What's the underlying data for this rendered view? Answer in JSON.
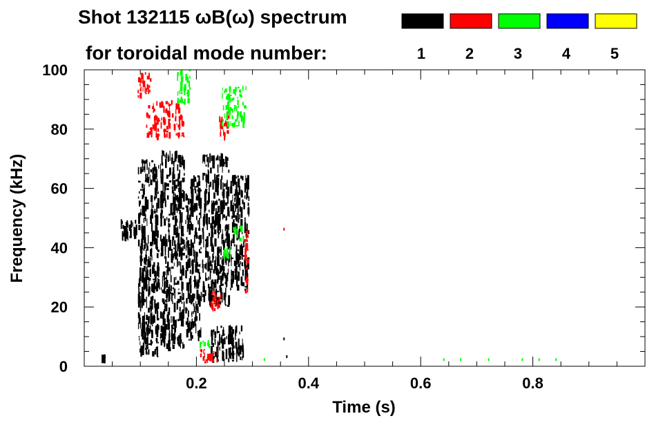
{
  "chart_data": {
    "type": "heatmap",
    "title_line1": "Shot 132115 ωB(ω) spectrum",
    "title_line2": "for toroidal mode number:",
    "xlabel": "Time (s)",
    "ylabel": "Frequency (kHz)",
    "xlim": [
      0.0,
      1.0
    ],
    "ylim": [
      0,
      100
    ],
    "x_ticks": [
      {
        "value": 0.2,
        "label": "0.2"
      },
      {
        "value": 0.4,
        "label": "0.4"
      },
      {
        "value": 0.6,
        "label": "0.6"
      },
      {
        "value": 0.8,
        "label": "0.8"
      }
    ],
    "y_ticks": [
      {
        "value": 0,
        "label": "0"
      },
      {
        "value": 20,
        "label": "20"
      },
      {
        "value": 40,
        "label": "40"
      },
      {
        "value": 60,
        "label": "60"
      },
      {
        "value": 80,
        "label": "80"
      },
      {
        "value": 100,
        "label": "100"
      }
    ],
    "legend": [
      {
        "n": "1",
        "label": "1",
        "color": "#000000"
      },
      {
        "n": "2",
        "label": "2",
        "color": "#ff0000"
      },
      {
        "n": "3",
        "label": "3",
        "color": "#00ff00"
      },
      {
        "n": "4",
        "label": "4",
        "color": "#0000ff"
      },
      {
        "n": "5",
        "label": "5",
        "color": "#ffff00"
      }
    ],
    "regions": [
      {
        "mode": "1",
        "t0": 0.065,
        "t1": 0.095,
        "f0": 42,
        "f1": 50
      },
      {
        "mode": "1",
        "t0": 0.095,
        "t1": 0.135,
        "f0": 3,
        "f1": 70
      },
      {
        "mode": "1",
        "t0": 0.135,
        "t1": 0.18,
        "f0": 5,
        "f1": 73
      },
      {
        "mode": "1",
        "t0": 0.18,
        "t1": 0.21,
        "f0": 8,
        "f1": 65
      },
      {
        "mode": "1",
        "t0": 0.21,
        "t1": 0.26,
        "f0": 20,
        "f1": 72
      },
      {
        "mode": "1",
        "t0": 0.26,
        "t1": 0.295,
        "f0": 25,
        "f1": 65
      },
      {
        "mode": "1",
        "t0": 0.225,
        "t1": 0.285,
        "f0": 1,
        "f1": 14
      },
      {
        "mode": "1",
        "t0": 0.03,
        "t1": 0.04,
        "f0": 1,
        "f1": 4
      },
      {
        "mode": "2",
        "t0": 0.11,
        "t1": 0.18,
        "f0": 76,
        "f1": 90
      },
      {
        "mode": "2",
        "t0": 0.095,
        "t1": 0.12,
        "f0": 90,
        "f1": 100
      },
      {
        "mode": "2",
        "t0": 0.24,
        "t1": 0.26,
        "f0": 75,
        "f1": 86
      },
      {
        "mode": "2",
        "t0": 0.285,
        "t1": 0.295,
        "f0": 24,
        "f1": 46
      },
      {
        "mode": "2",
        "t0": 0.205,
        "t1": 0.245,
        "f0": 1,
        "f1": 6
      },
      {
        "mode": "2",
        "t0": 0.225,
        "t1": 0.245,
        "f0": 18,
        "f1": 26
      },
      {
        "mode": "3",
        "t0": 0.165,
        "t1": 0.19,
        "f0": 88,
        "f1": 100
      },
      {
        "mode": "3",
        "t0": 0.245,
        "t1": 0.29,
        "f0": 80,
        "f1": 95
      },
      {
        "mode": "3",
        "t0": 0.265,
        "t1": 0.285,
        "f0": 42,
        "f1": 48
      },
      {
        "mode": "3",
        "t0": 0.245,
        "t1": 0.265,
        "f0": 36,
        "f1": 40
      },
      {
        "mode": "3",
        "t0": 0.205,
        "t1": 0.225,
        "f0": 6,
        "f1": 9
      }
    ],
    "specks": [
      {
        "mode": "3",
        "t": 0.64,
        "f": 2
      },
      {
        "mode": "3",
        "t": 0.67,
        "f": 2
      },
      {
        "mode": "3",
        "t": 0.72,
        "f": 2
      },
      {
        "mode": "3",
        "t": 0.78,
        "f": 2
      },
      {
        "mode": "3",
        "t": 0.81,
        "f": 2
      },
      {
        "mode": "3",
        "t": 0.84,
        "f": 2
      },
      {
        "mode": "2",
        "t": 0.355,
        "f": 46
      },
      {
        "mode": "1",
        "t": 0.36,
        "f": 3
      },
      {
        "mode": "1",
        "t": 0.355,
        "f": 9
      },
      {
        "mode": "3",
        "t": 0.32,
        "f": 2
      }
    ]
  }
}
